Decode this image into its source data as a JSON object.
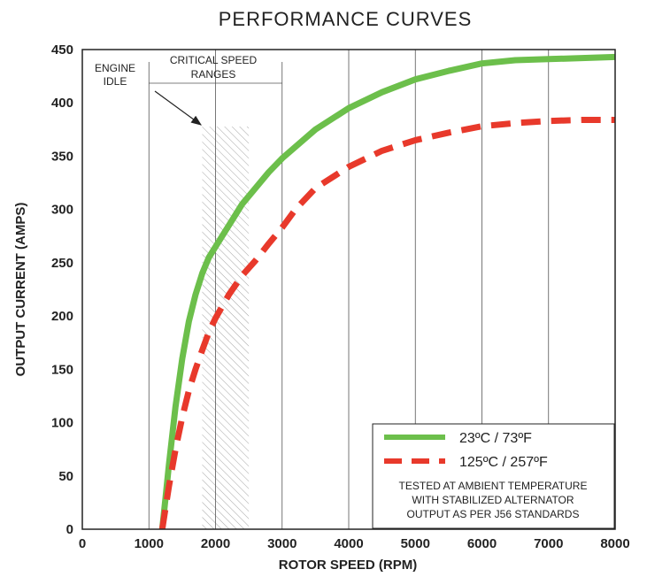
{
  "chart_data": {
    "type": "line",
    "title": "PERFORMANCE CURVES",
    "xlabel": "ROTOR SPEED (RPM)",
    "ylabel": "OUTPUT CURRENT (AMPS)",
    "xlim": [
      0,
      8000
    ],
    "ylim": [
      0,
      450
    ],
    "x_ticks": [
      0,
      1000,
      2000,
      3000,
      4000,
      5000,
      6000,
      7000,
      8000
    ],
    "y_ticks": [
      0,
      50,
      100,
      150,
      200,
      250,
      300,
      350,
      400,
      450
    ],
    "grid": "vertical",
    "series": [
      {
        "name": "23ºC / 73ºF",
        "color": "#6cbf4b",
        "style": "solid",
        "x": [
          1200,
          1250,
          1300,
          1400,
          1500,
          1600,
          1700,
          1800,
          1900,
          2000,
          2200,
          2400,
          2600,
          2800,
          3000,
          3500,
          4000,
          4500,
          5000,
          5500,
          6000,
          6500,
          7000,
          7500,
          8000
        ],
        "y": [
          0,
          30,
          60,
          115,
          160,
          195,
          220,
          240,
          255,
          265,
          285,
          305,
          320,
          335,
          348,
          375,
          395,
          410,
          422,
          430,
          437,
          440,
          441,
          442,
          443
        ]
      },
      {
        "name": "125ºC / 257ºF",
        "color": "#e8392b",
        "style": "dashed",
        "x": [
          1200,
          1300,
          1400,
          1500,
          1600,
          1700,
          1800,
          1900,
          2000,
          2200,
          2400,
          2600,
          2800,
          3000,
          3200,
          3500,
          4000,
          4500,
          5000,
          5500,
          6000,
          6500,
          7000,
          7500,
          8000
        ],
        "y": [
          0,
          40,
          75,
          105,
          130,
          150,
          168,
          185,
          198,
          220,
          238,
          252,
          268,
          283,
          300,
          320,
          340,
          355,
          365,
          372,
          378,
          381,
          383,
          384,
          384
        ]
      }
    ],
    "annotations": {
      "engine_idle": [
        "ENGINE",
        "IDLE"
      ],
      "critical_speed": [
        "CRITICAL SPEED",
        "RANGES"
      ],
      "critical_range_rpm": [
        1800,
        2500
      ],
      "engine_idle_rpm": 1000,
      "note": [
        "TESTED AT AMBIENT TEMPERATURE",
        "WITH  STABILIZED ALTERNATOR",
        "OUTPUT AS PER J56 STANDARDS"
      ]
    },
    "legend_position": "bottom-right"
  }
}
